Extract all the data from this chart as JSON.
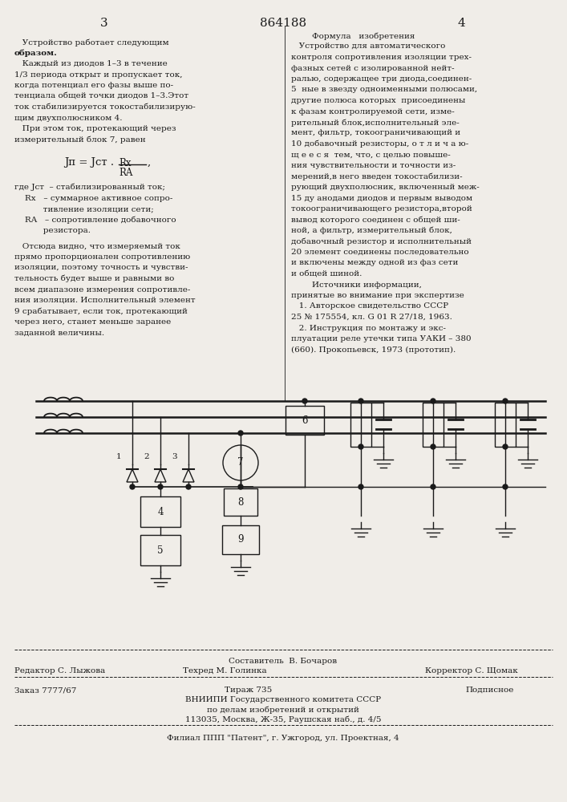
{
  "bg_color": "#f0ede8",
  "text_color": "#1a1a1a",
  "page_num_left": "3",
  "page_num_center": "864188",
  "page_num_right": "4"
}
